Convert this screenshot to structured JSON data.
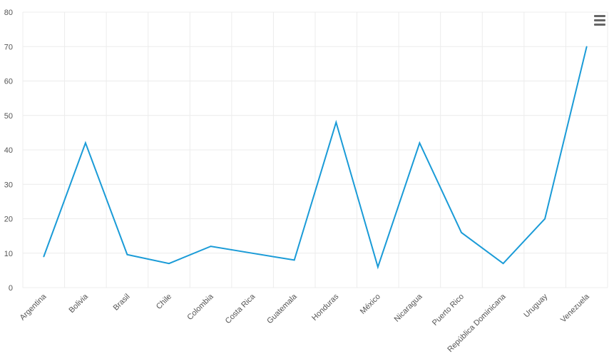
{
  "chart_data": {
    "type": "line",
    "title": "",
    "xlabel": "",
    "ylabel": "",
    "categories": [
      "Argentina",
      "Bolivia",
      "Brasil",
      "Chile",
      "Colombia",
      "Costa Rica",
      "Guatemala",
      "Honduras",
      "México",
      "Nicaragua",
      "Puerto Rico",
      "República Dominicana",
      "Uruguay",
      "Venezuela"
    ],
    "series": [
      {
        "values": [
          9,
          42,
          9.6,
          7,
          12,
          10,
          8,
          48,
          6,
          42,
          16,
          7,
          20,
          70
        ]
      }
    ],
    "ylim": [
      0,
      80
    ],
    "yticks": [
      0,
      10,
      20,
      30,
      40,
      50,
      60,
      70,
      80
    ],
    "grid": true,
    "legend": "none",
    "colors": {
      "line": "#1a9bd7",
      "grid": "#ececec",
      "axis_text": "#555555"
    }
  },
  "toolbar": {
    "menu_icon": "hamburger-menu-icon"
  }
}
